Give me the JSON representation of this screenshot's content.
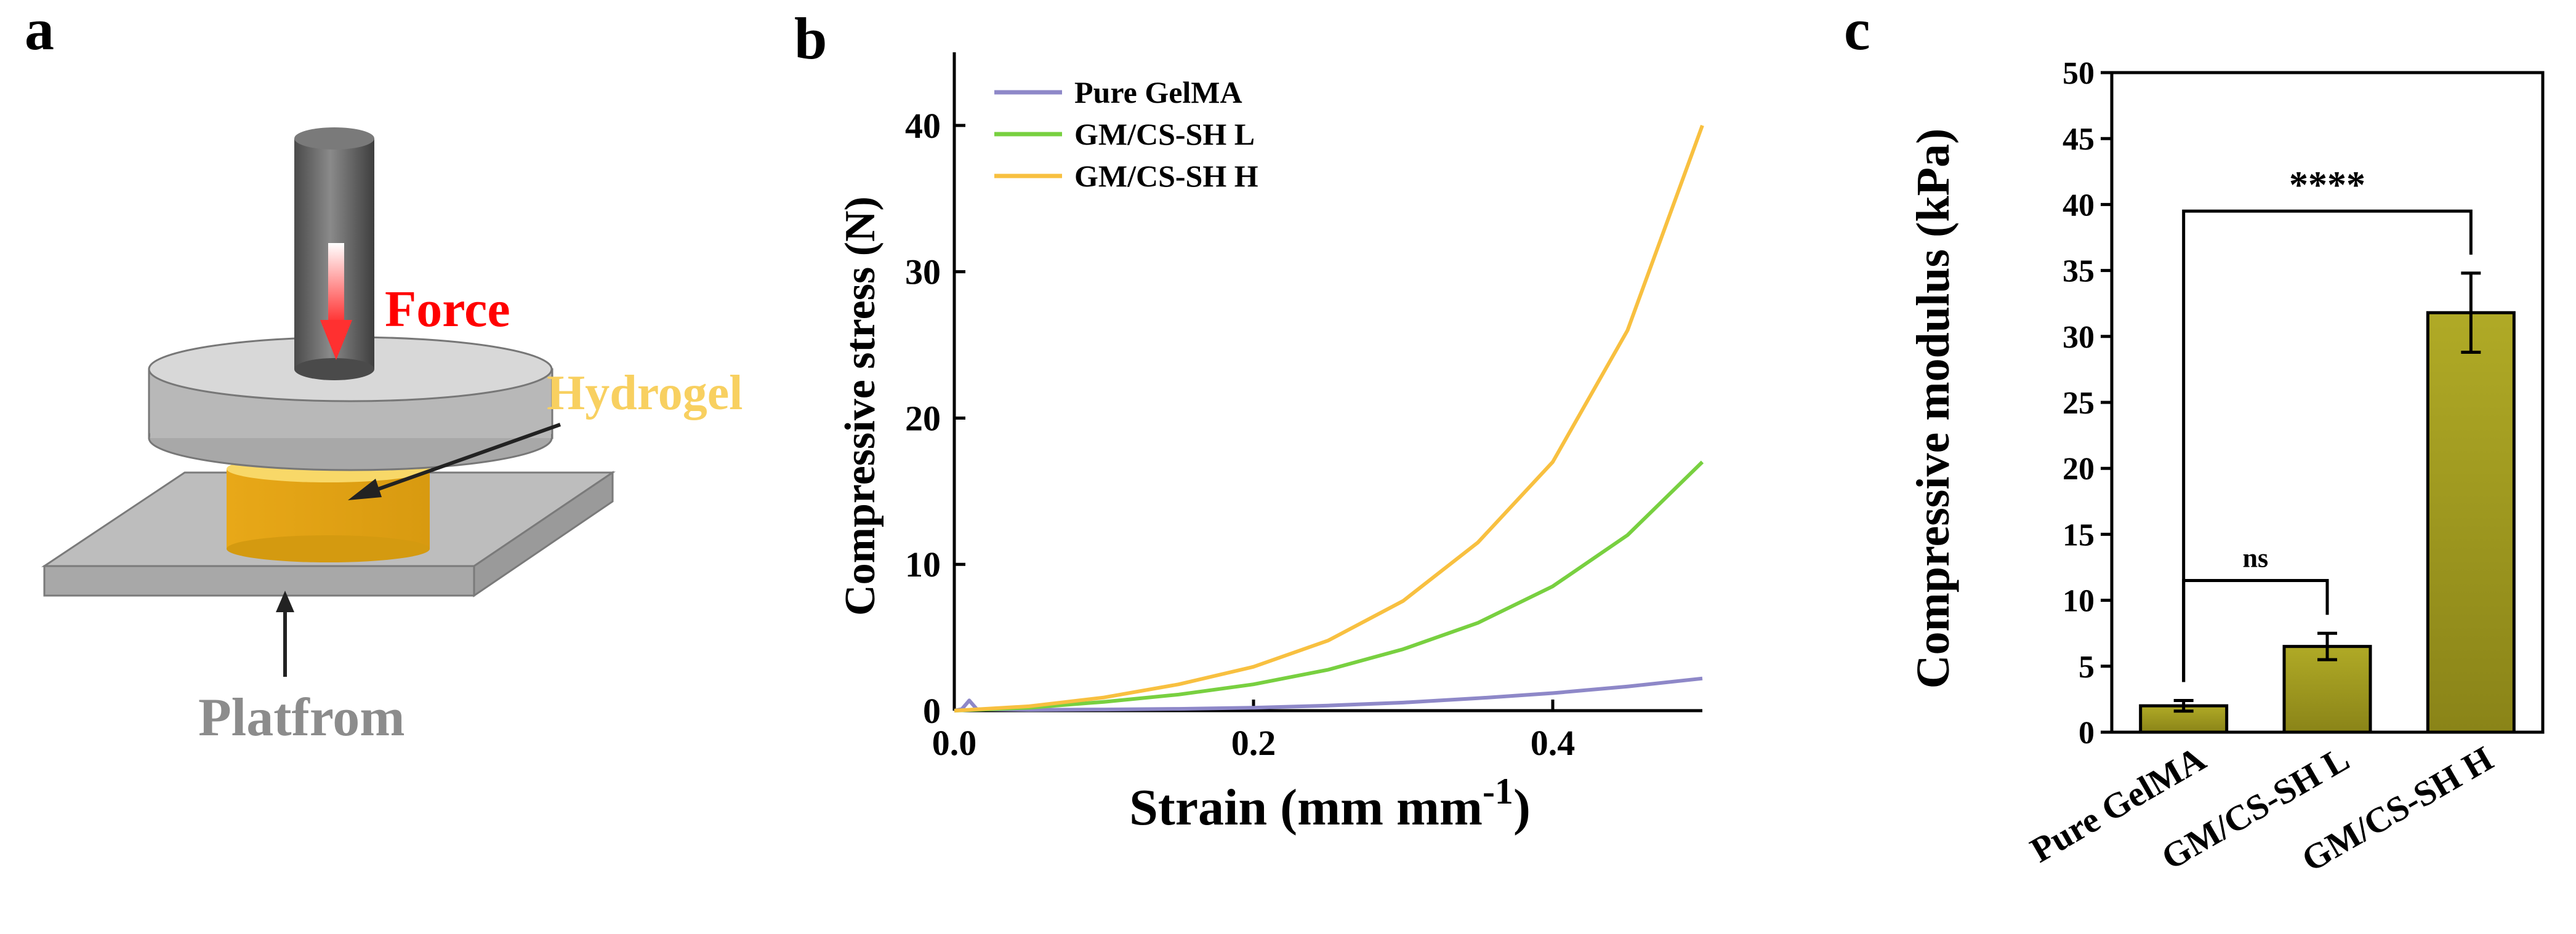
{
  "panels": {
    "a": {
      "letter": "a",
      "force_label": "Force",
      "hydrogel_label": "Hydrogel",
      "platform_label": "Platfrom",
      "colors": {
        "force": "#ff0000",
        "hydrogel_label": "#f8d060",
        "hydrogel": "#e8b020",
        "piston": "#5a5a5a",
        "plate": "#c8c8c8",
        "platform": "#b0b0b0",
        "platform_label": "#8c8c8c"
      }
    },
    "b": {
      "letter": "b"
    },
    "c": {
      "letter": "c"
    }
  },
  "chart_data": [
    {
      "type": "line",
      "panel": "b",
      "title": "",
      "xlabel": "Strain (mm mm",
      "xlabel_sup": "-1",
      "xlabel_close": ")",
      "ylabel": "Compressive stress (N)",
      "xlim": [
        0,
        0.5
      ],
      "ylim": [
        0,
        45
      ],
      "xticks": [
        0.0,
        0.2,
        0.4
      ],
      "xtick_labels": [
        "0.0",
        "0.2",
        "0.4"
      ],
      "yticks": [
        0,
        10,
        20,
        30,
        40
      ],
      "ytick_labels": [
        "0",
        "10",
        "20",
        "30",
        "40"
      ],
      "legend_position": "top-left",
      "series": [
        {
          "name": "Pure GelMA",
          "color": "#8e88c8",
          "x": [
            0.0,
            0.005,
            0.01,
            0.015,
            0.05,
            0.1,
            0.15,
            0.2,
            0.25,
            0.3,
            0.35,
            0.4,
            0.45,
            0.5
          ],
          "y": [
            0.0,
            0.1,
            0.7,
            0.1,
            0.05,
            0.08,
            0.12,
            0.2,
            0.35,
            0.55,
            0.85,
            1.2,
            1.65,
            2.2
          ]
        },
        {
          "name": "GM/CS-SH L",
          "color": "#78d040",
          "x": [
            0.0,
            0.05,
            0.1,
            0.15,
            0.2,
            0.25,
            0.3,
            0.35,
            0.4,
            0.45,
            0.5
          ],
          "y": [
            0.0,
            0.2,
            0.6,
            1.1,
            1.8,
            2.8,
            4.2,
            6.0,
            8.5,
            12.0,
            17.0
          ]
        },
        {
          "name": "GM/CS-SH H",
          "color": "#f8c040",
          "x": [
            0.0,
            0.05,
            0.1,
            0.15,
            0.2,
            0.25,
            0.3,
            0.35,
            0.4,
            0.45,
            0.5
          ],
          "y": [
            0.0,
            0.3,
            0.9,
            1.8,
            3.0,
            4.8,
            7.5,
            11.5,
            17.0,
            26.0,
            40.0
          ]
        }
      ]
    },
    {
      "type": "bar",
      "panel": "c",
      "title": "",
      "xlabel": "",
      "ylabel": "Compressive modulus (kPa)",
      "ylim": [
        0,
        50
      ],
      "yticks": [
        0,
        5,
        10,
        15,
        20,
        25,
        30,
        35,
        40,
        45,
        50
      ],
      "ytick_labels": [
        "0",
        "5",
        "10",
        "15",
        "20",
        "25",
        "30",
        "35",
        "40",
        "45",
        "50"
      ],
      "categories": [
        "Pure GelMA",
        "GM/CS-SH L",
        "GM/CS-SH H"
      ],
      "values": [
        2.0,
        6.5,
        31.8
      ],
      "errors": [
        0.4,
        1.0,
        3.0
      ],
      "bar_color": "#a09a1c",
      "significance": [
        {
          "from": 0,
          "to": 1,
          "label": "ns",
          "level": 11.5
        },
        {
          "from": 0,
          "to": 2,
          "label": "****",
          "level": 39.5
        }
      ]
    }
  ]
}
